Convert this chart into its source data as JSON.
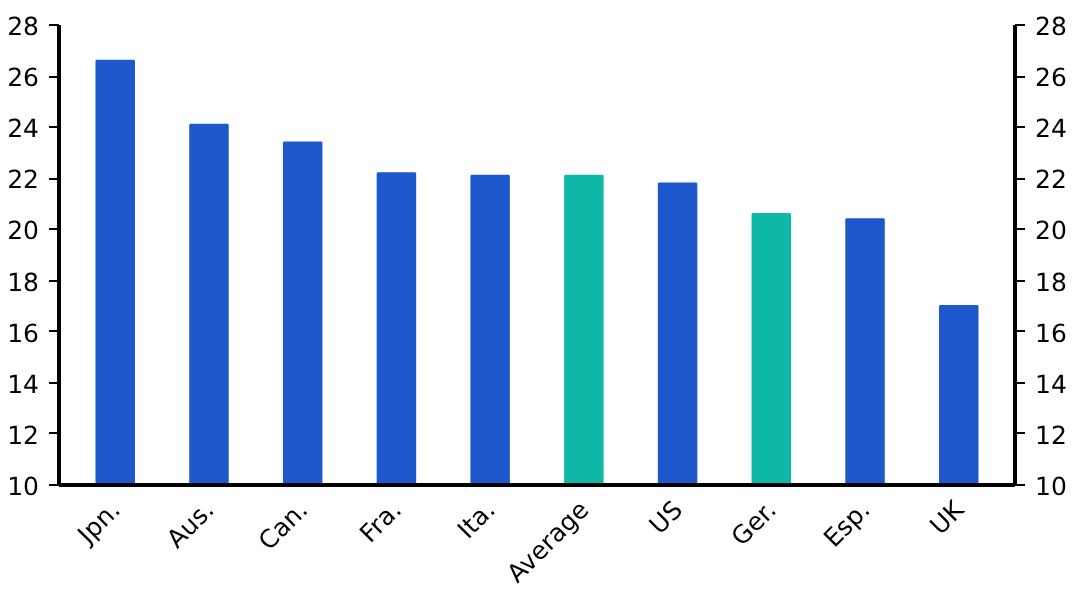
{
  "chart_data": {
    "type": "bar",
    "categories": [
      "Jpn.",
      "Aus.",
      "Can.",
      "Fra.",
      "Ita.",
      "Average",
      "US",
      "Ger.",
      "Esp.",
      "UK"
    ],
    "values": [
      26.6,
      24.1,
      23.4,
      22.2,
      22.1,
      22.1,
      21.8,
      20.6,
      20.4,
      17.0
    ],
    "colors": [
      "#1f57cc",
      "#1f57cc",
      "#1f57cc",
      "#1f57cc",
      "#1f57cc",
      "#0db8a8",
      "#1f57cc",
      "#0db8a8",
      "#1f57cc",
      "#1f57cc"
    ],
    "ylim": [
      10,
      28
    ],
    "yticks": [
      10,
      12,
      14,
      16,
      18,
      20,
      22,
      24,
      26,
      28
    ],
    "y2lim": [
      10,
      28
    ],
    "y2ticks": [
      10,
      12,
      14,
      16,
      18,
      20,
      22,
      24,
      26,
      28
    ],
    "grid": false
  }
}
